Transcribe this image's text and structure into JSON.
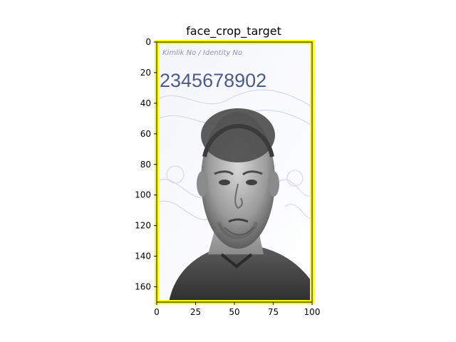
{
  "figure": {
    "title": "face_crop_target",
    "crop_border_color": "#ffff00",
    "axis_color": "#000000",
    "image": {
      "document_text": {
        "header": "Kimlik No / Identity No",
        "id_number": "2345678902"
      }
    }
  },
  "chart_data": {
    "type": "image",
    "title": "face_crop_target",
    "xlabel": "",
    "ylabel": "",
    "x_ticks": [
      0,
      25,
      50,
      75,
      100
    ],
    "y_ticks": [
      0,
      20,
      40,
      60,
      80,
      100,
      120,
      140,
      160
    ],
    "xlim": [
      0,
      100
    ],
    "ylim": [
      170,
      0
    ]
  }
}
